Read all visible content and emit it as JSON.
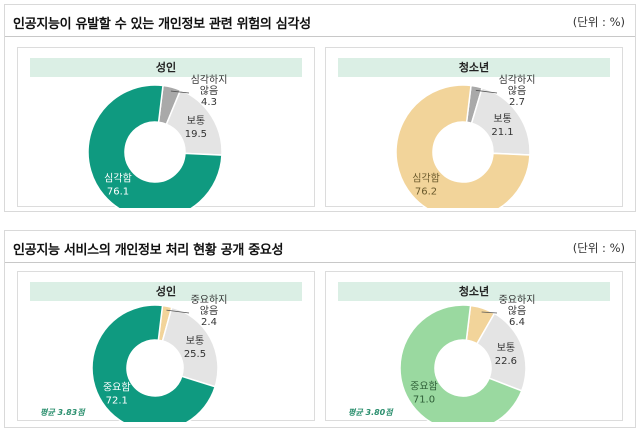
{
  "sections": [
    {
      "title": "인공지능이 유발할 수 있는 개인정보 관련 위험의 심각성",
      "unit": "(단위 : %)"
    },
    {
      "title": "인공지능 서비스의 개인정보 처리 현황 공개 중요성",
      "unit": "(단위 : %)"
    }
  ],
  "chart_data": [
    {
      "type": "pie",
      "title": "성인",
      "categories": [
        "심각함",
        "보통",
        "심각하지 않음"
      ],
      "values": [
        76.1,
        19.5,
        4.3
      ],
      "colors": [
        "#0f9a80",
        "#e4e4e4",
        "#a9a9a9"
      ],
      "label_colors": [
        "#ffffff",
        "#333333",
        "#333333"
      ]
    },
    {
      "type": "pie",
      "title": "청소년",
      "categories": [
        "심각함",
        "보통",
        "심각하지 않음"
      ],
      "values": [
        76.2,
        21.1,
        2.7
      ],
      "colors": [
        "#f2d49a",
        "#e4e4e4",
        "#a9a9a9"
      ],
      "label_colors": [
        "#6b5a2c",
        "#333333",
        "#333333"
      ]
    },
    {
      "type": "pie",
      "title": "성인",
      "categories": [
        "중요함",
        "보통",
        "중요하지 않음"
      ],
      "values": [
        72.1,
        25.5,
        2.4
      ],
      "colors": [
        "#0f9a80",
        "#e4e4e4",
        "#f2d49a"
      ],
      "label_colors": [
        "#ffffff",
        "#333333",
        "#333333"
      ],
      "note": "평균 3.83점"
    },
    {
      "type": "pie",
      "title": "청소년",
      "categories": [
        "중요함",
        "보통",
        "중요하지 않음"
      ],
      "values": [
        71.0,
        22.6,
        6.4
      ],
      "colors": [
        "#9ad9a0",
        "#e4e4e4",
        "#f2d49a"
      ],
      "label_colors": [
        "#2f5e37",
        "#333333",
        "#333333"
      ],
      "note": "평균 3.80점"
    }
  ]
}
